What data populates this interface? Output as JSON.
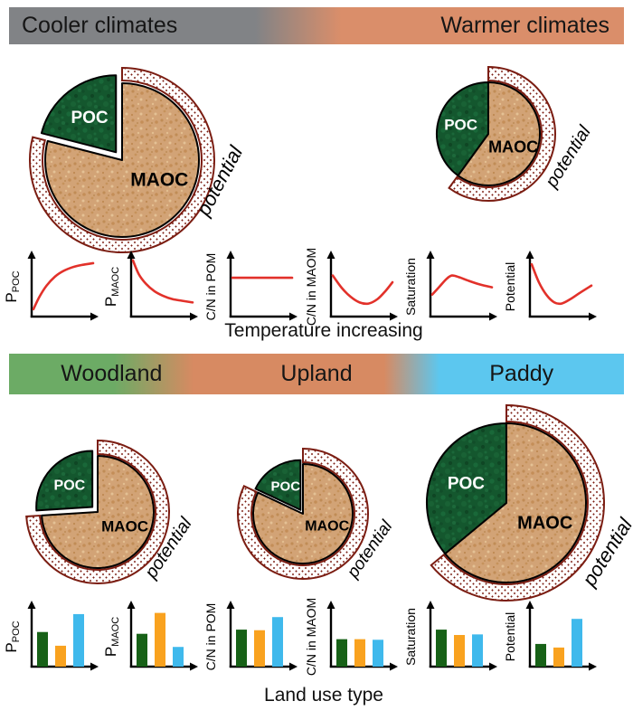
{
  "banners": {
    "climate": {
      "left_label": "Cooler climates",
      "right_label": "Warmer climates",
      "left_color": "#818386",
      "right_color": "#DA8E6A"
    },
    "land_use": {
      "labels": [
        "Woodland",
        "Upland",
        "Paddy"
      ],
      "colors": [
        "#6CAB65",
        "#D78A62",
        "#5CC7EF"
      ]
    }
  },
  "captions": {
    "temperature_axis": "Temperature increasing",
    "land_use_axis": "Land use type"
  },
  "pies": {
    "cooler": {
      "poc_label": "POC",
      "maoc_label": "MAOC",
      "ring_label": "potential",
      "poc_percent": 21,
      "maoc_percent": 79
    },
    "warmer": {
      "poc_label": "POC",
      "maoc_label": "MAOC",
      "ring_label": "potential",
      "poc_percent": 40,
      "maoc_percent": 60
    },
    "woodland": {
      "poc_label": "POC",
      "maoc_label": "MAOC",
      "ring_label": "potential",
      "poc_percent": 26,
      "maoc_percent": 74
    },
    "upland": {
      "poc_label": "POC",
      "maoc_label": "MAOC",
      "ring_label": "potential",
      "poc_percent": 18,
      "maoc_percent": 82
    },
    "paddy": {
      "poc_label": "POC",
      "maoc_label": "MAOC",
      "ring_label": "potential",
      "poc_percent": 36,
      "maoc_percent": 64
    }
  },
  "colors": {
    "curve_red": "#E2312A",
    "bar_palette": [
      "#176117",
      "#F9A21F",
      "#3FB9EC"
    ],
    "poc_green": "#14572E",
    "maoc_tan": "#D2A376",
    "ring_stipple": "#7B1D12",
    "axis_black": "#000000"
  },
  "chart_data": [
    {
      "type": "line",
      "x_axis_label": "Temperature increasing",
      "legend": "none",
      "charts": [
        {
          "key": "p_poc",
          "ylabel_main": "P",
          "ylabel_sub": "POC",
          "trend": "increasing, saturating",
          "points": [
            [
              0,
              0.1
            ],
            [
              0.1,
              0.32
            ],
            [
              0.22,
              0.52
            ],
            [
              0.36,
              0.68
            ],
            [
              0.5,
              0.78
            ],
            [
              0.66,
              0.85
            ],
            [
              0.82,
              0.89
            ],
            [
              1,
              0.92
            ]
          ]
        },
        {
          "key": "p_maoc",
          "ylabel_main": "P",
          "ylabel_sub": "MAOC",
          "trend": "decreasing, convex",
          "points": [
            [
              0,
              0.97
            ],
            [
              0.1,
              0.72
            ],
            [
              0.22,
              0.55
            ],
            [
              0.36,
              0.42
            ],
            [
              0.5,
              0.34
            ],
            [
              0.66,
              0.28
            ],
            [
              0.82,
              0.25
            ],
            [
              1,
              0.22
            ]
          ]
        },
        {
          "key": "cn_pom",
          "ylabel_main": "C/N in POM",
          "ylabel_sub": "",
          "trend": "flat",
          "points": [
            [
              0,
              0.66
            ],
            [
              0.5,
              0.66
            ],
            [
              1,
              0.66
            ]
          ]
        },
        {
          "key": "cn_maom",
          "ylabel_main": "C/N in MAOM",
          "ylabel_sub": "",
          "trend": "U-shaped dip then rise",
          "points": [
            [
              0,
              0.7
            ],
            [
              0.15,
              0.48
            ],
            [
              0.3,
              0.32
            ],
            [
              0.45,
              0.22
            ],
            [
              0.6,
              0.2
            ],
            [
              0.75,
              0.28
            ],
            [
              0.88,
              0.42
            ],
            [
              1,
              0.58
            ]
          ]
        },
        {
          "key": "saturation",
          "ylabel_main": "Saturation",
          "ylabel_sub": "",
          "trend": "early peak then gentle decline",
          "points": [
            [
              0,
              0.36
            ],
            [
              0.12,
              0.5
            ],
            [
              0.24,
              0.64
            ],
            [
              0.33,
              0.7
            ],
            [
              0.45,
              0.67
            ],
            [
              0.6,
              0.61
            ],
            [
              0.8,
              0.54
            ],
            [
              1,
              0.49
            ]
          ]
        },
        {
          "key": "potential",
          "ylabel_main": "Potential",
          "ylabel_sub": "",
          "trend": "steep dip then recovery",
          "points": [
            [
              0,
              0.9
            ],
            [
              0.12,
              0.58
            ],
            [
              0.25,
              0.35
            ],
            [
              0.38,
              0.22
            ],
            [
              0.5,
              0.2
            ],
            [
              0.65,
              0.28
            ],
            [
              0.82,
              0.4
            ],
            [
              1,
              0.52
            ]
          ]
        }
      ]
    },
    {
      "type": "bar",
      "x_axis_label": "Land use type",
      "categories": [
        "Woodland",
        "Upland",
        "Paddy"
      ],
      "charts": [
        {
          "key": "p_poc",
          "ylabel_main": "P",
          "ylabel_sub": "POC",
          "values": [
            0.58,
            0.35,
            0.88
          ]
        },
        {
          "key": "p_maoc",
          "ylabel_main": "P",
          "ylabel_sub": "MAOC",
          "values": [
            0.55,
            0.9,
            0.33
          ]
        },
        {
          "key": "cn_pom",
          "ylabel_main": "C/N in POM",
          "ylabel_sub": "",
          "values": [
            0.62,
            0.61,
            0.83
          ]
        },
        {
          "key": "cn_maom",
          "ylabel_main": "C/N in MAOM",
          "ylabel_sub": "",
          "values": [
            0.46,
            0.46,
            0.45
          ]
        },
        {
          "key": "saturation",
          "ylabel_main": "Saturation",
          "ylabel_sub": "",
          "values": [
            0.62,
            0.53,
            0.54
          ]
        },
        {
          "key": "potential",
          "ylabel_main": "Potential",
          "ylabel_sub": "",
          "values": [
            0.38,
            0.32,
            0.8
          ]
        }
      ]
    }
  ]
}
